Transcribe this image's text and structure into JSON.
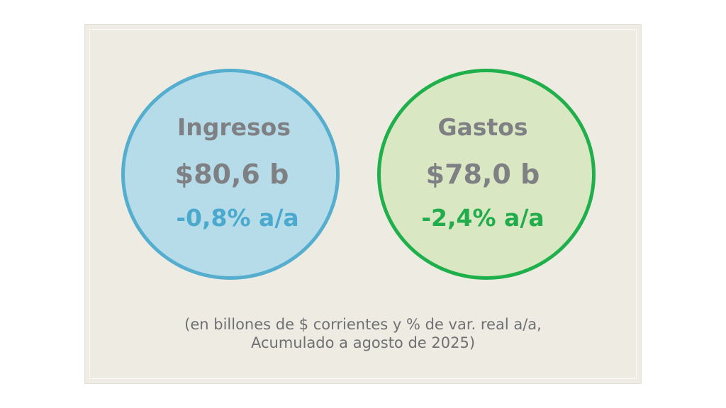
{
  "ingresos": {
    "title": "Ingresos",
    "amount": "$80,6 b",
    "variation": "-0,8% a/a",
    "fill_color": "#b6dcea",
    "border_color": "#56aecf"
  },
  "gastos": {
    "title": "Gastos",
    "amount": "$78,0 b",
    "variation": "-2,4% a/a",
    "fill_color": "#d9e7c2",
    "border_color": "#1fb04c"
  },
  "footnote": {
    "line1": "(en billones de $ corrientes y % de var. real a/a,",
    "line2": "Acumulado a agosto de 2025)"
  }
}
